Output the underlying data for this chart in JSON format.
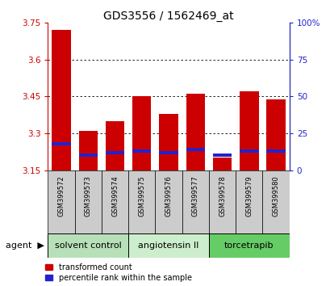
{
  "title": "GDS3556 / 1562469_at",
  "samples": [
    "GSM399572",
    "GSM399573",
    "GSM399574",
    "GSM399575",
    "GSM399576",
    "GSM399577",
    "GSM399578",
    "GSM399579",
    "GSM399580"
  ],
  "transformed_counts": [
    3.72,
    3.31,
    3.35,
    3.45,
    3.38,
    3.46,
    3.2,
    3.47,
    3.44
  ],
  "percentile_ranks": [
    18,
    10,
    12,
    13,
    12,
    14,
    10,
    13,
    13
  ],
  "bar_bottom": 3.15,
  "ylim": [
    3.15,
    3.75
  ],
  "yticks": [
    3.15,
    3.3,
    3.45,
    3.6,
    3.75
  ],
  "right_yticks": [
    0,
    25,
    50,
    75,
    100
  ],
  "right_ylim": [
    0,
    100
  ],
  "red_color": "#cc0000",
  "blue_color": "#2222cc",
  "grid_lines": [
    3.3,
    3.45,
    3.6
  ],
  "agent_groups": [
    {
      "label": "solvent control",
      "indices": [
        0,
        1,
        2
      ],
      "color": "#b8e0b8"
    },
    {
      "label": "angiotensin II",
      "indices": [
        3,
        4,
        5
      ],
      "color": "#cceecc"
    },
    {
      "label": "torcetrapib",
      "indices": [
        6,
        7,
        8
      ],
      "color": "#66cc66"
    }
  ],
  "bar_width": 0.7,
  "legend_red": "transformed count",
  "legend_blue": "percentile rank within the sample",
  "title_fontsize": 10,
  "tick_fontsize": 7.5,
  "sample_fontsize": 6,
  "agent_fontsize": 8,
  "legend_fontsize": 7
}
